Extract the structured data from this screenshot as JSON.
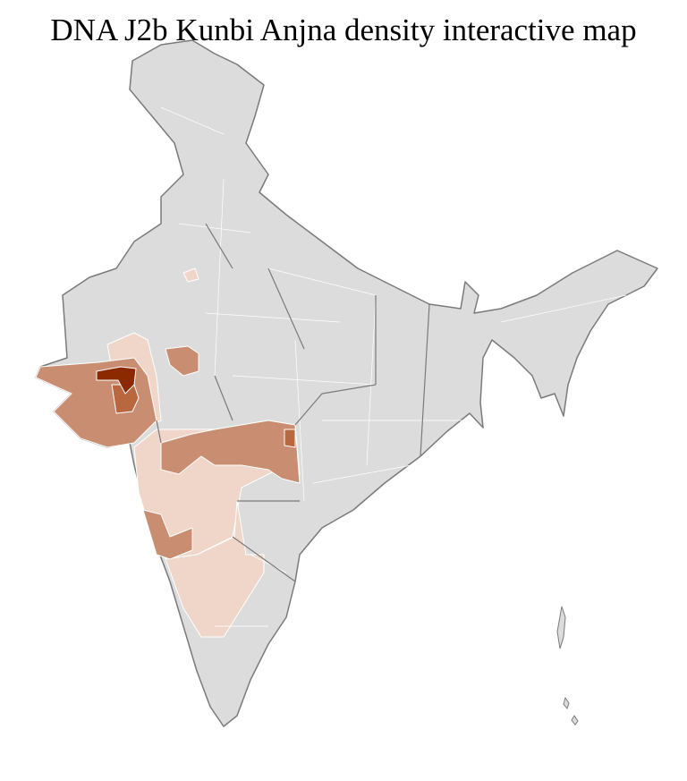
{
  "title": "DNA J2b Kunbi Anjna density interactive map",
  "map": {
    "region": "India districts",
    "colors": {
      "no_data": "#dcdcdc",
      "low": "#efd6c9",
      "medium": "#c98e72",
      "high": "#b8673f",
      "highest": "#8b2a00",
      "state_border": "#7a7a7a",
      "district_border": "#ffffff"
    }
  }
}
